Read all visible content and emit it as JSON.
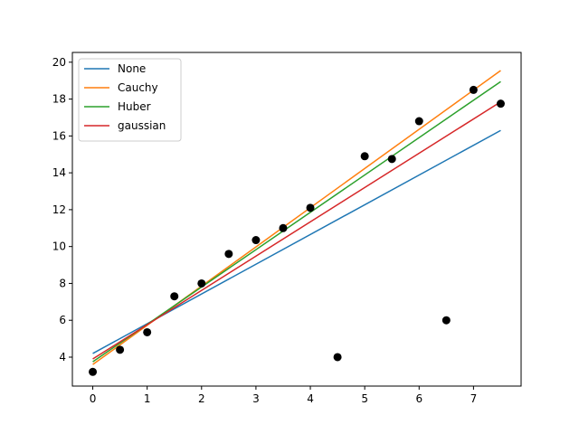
{
  "chart_data": {
    "type": "scatter",
    "title": "",
    "xlabel": "",
    "ylabel": "",
    "xlim": [
      -0.375,
      7.875
    ],
    "ylim": [
      2.43,
      20.53
    ],
    "xticks": [
      0,
      1,
      2,
      3,
      4,
      5,
      6,
      7
    ],
    "yticks": [
      4,
      6,
      8,
      10,
      12,
      14,
      16,
      18,
      20
    ],
    "grid": false,
    "legend_position": "top-left",
    "points": {
      "color": "#000000",
      "x": [
        0,
        0.5,
        1,
        1.5,
        2,
        2.5,
        3,
        3.5,
        4,
        4.5,
        5,
        5.5,
        6,
        6.5,
        7,
        7.5
      ],
      "y": [
        3.2,
        4.4,
        5.35,
        7.3,
        8.0,
        9.6,
        10.35,
        11.0,
        12.1,
        4.0,
        14.9,
        14.75,
        16.8,
        6.0,
        18.5,
        17.75
      ]
    },
    "series": [
      {
        "name": "None",
        "color": "#1f77b4",
        "x": [
          0,
          7.5
        ],
        "y": [
          4.2,
          16.3
        ]
      },
      {
        "name": "Cauchy",
        "color": "#ff7f0e",
        "x": [
          0,
          7.5
        ],
        "y": [
          3.6,
          19.55
        ]
      },
      {
        "name": "Huber",
        "color": "#2ca02c",
        "x": [
          0,
          7.5
        ],
        "y": [
          3.75,
          18.95
        ]
      },
      {
        "name": "gaussian",
        "color": "#d62728",
        "x": [
          0,
          7.5
        ],
        "y": [
          3.9,
          17.85
        ]
      }
    ]
  }
}
